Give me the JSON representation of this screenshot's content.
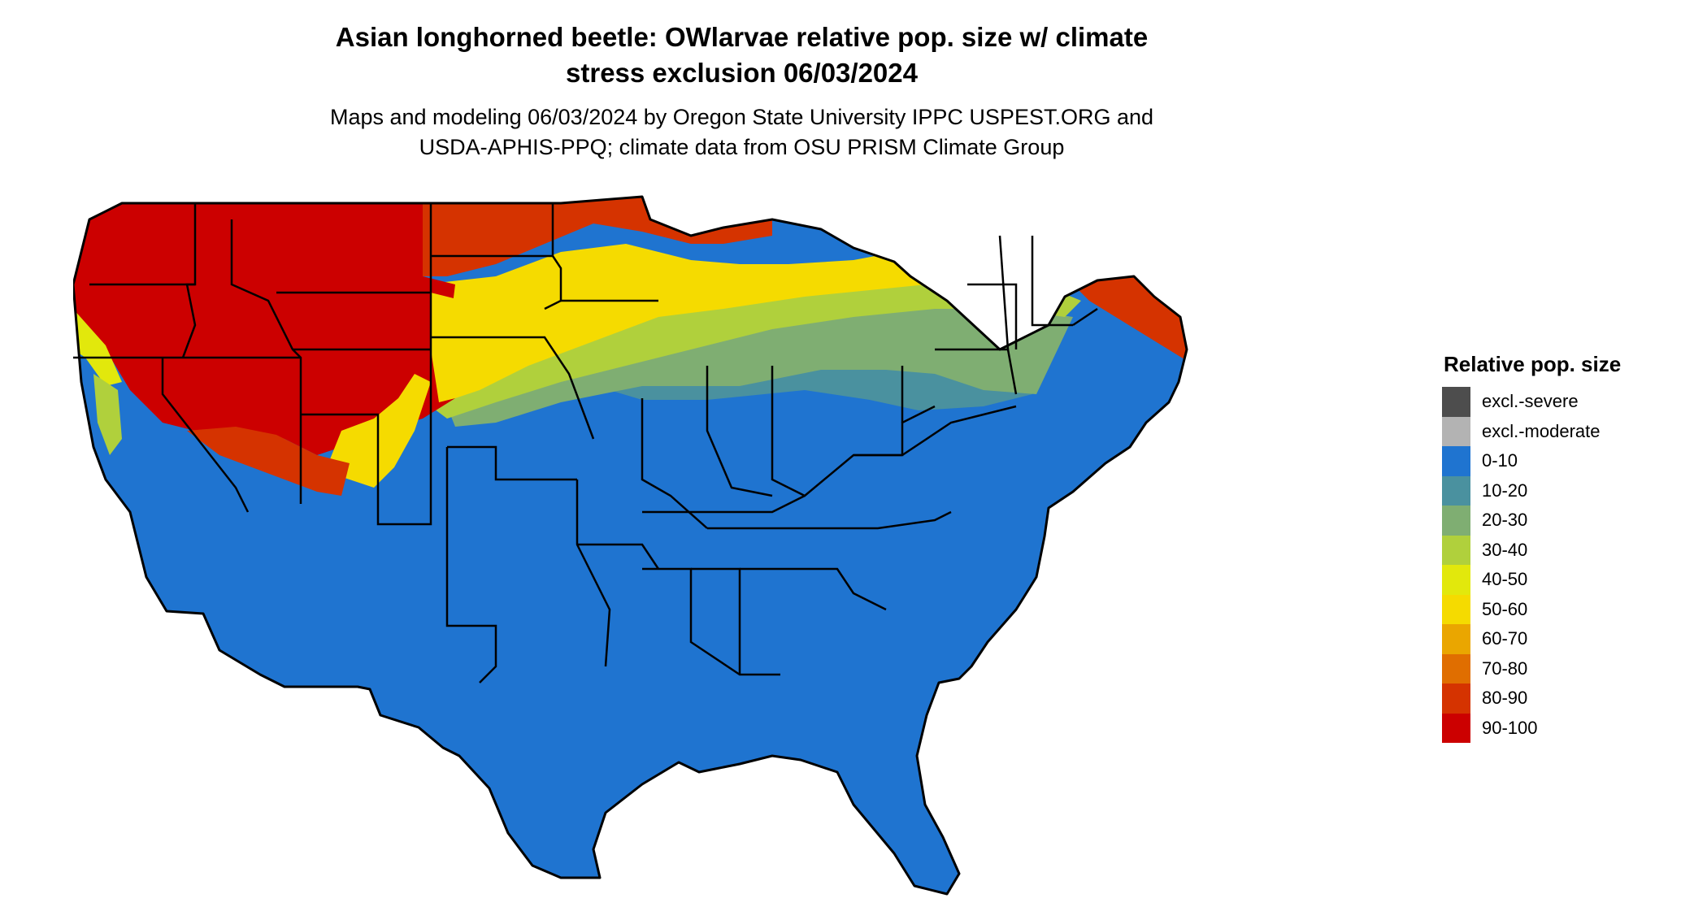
{
  "header": {
    "title": "Asian longhorned beetle: OWlarvae relative pop. size w/ climate\nstress exclusion 06/03/2024",
    "subtitle": "Maps and modeling 06/03/2024 by Oregon State University IPPC USPEST.ORG and\nUSDA-APHIS-PPQ; climate data from OSU PRISM Climate Group"
  },
  "map": {
    "region": "Conterminous United States",
    "coverage": [
      {
        "area": "Pacific Northwest, Northern Rockies, Great Plains north",
        "class": "90-100"
      },
      {
        "area": "Upper Midwest and Northern Great Lakes",
        "class": "80-90"
      },
      {
        "area": "Northern New England",
        "class": "80-90"
      },
      {
        "area": "Central Plains and Upper Mississippi",
        "class": "50-60"
      },
      {
        "area": "Ohio Valley",
        "class": "10-20"
      },
      {
        "area": "Southeast, Texas, Southwest deserts, California valleys",
        "class": "0-10"
      }
    ]
  },
  "legend": {
    "title": "Relative pop. size",
    "items": [
      {
        "label": "excl.-severe",
        "color": "#4d4d4d"
      },
      {
        "label": "excl.-moderate",
        "color": "#b3b3b3"
      },
      {
        "label": "0-10",
        "color": "#1f74d0"
      },
      {
        "label": "10-20",
        "color": "#4a919f"
      },
      {
        "label": "20-30",
        "color": "#7fae72"
      },
      {
        "label": "30-40",
        "color": "#b0d03c"
      },
      {
        "label": "40-50",
        "color": "#e2e80c"
      },
      {
        "label": "50-60",
        "color": "#f5db00"
      },
      {
        "label": "60-70",
        "color": "#eaa600"
      },
      {
        "label": "70-80",
        "color": "#e06e00"
      },
      {
        "label": "80-90",
        "color": "#d53300"
      },
      {
        "label": "90-100",
        "color": "#cc0000"
      }
    ]
  }
}
